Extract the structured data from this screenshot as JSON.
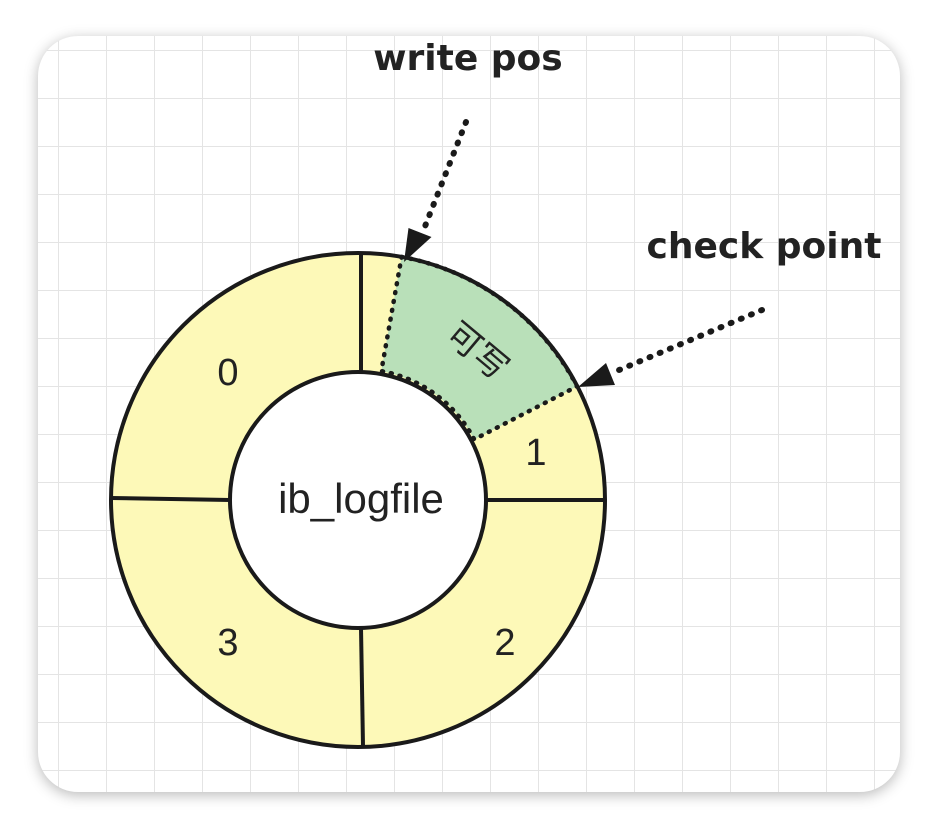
{
  "diagram": {
    "center_label": "ib_logfile",
    "segments": [
      {
        "id": "0",
        "label": "0"
      },
      {
        "id": "1",
        "label": "1"
      },
      {
        "id": "2",
        "label": "2"
      },
      {
        "id": "3",
        "label": "3"
      }
    ],
    "writable_region_label": "可写",
    "pointers": {
      "write_pos": "write pos",
      "check_point": "check point"
    },
    "colors": {
      "segment_fill": "#fdf9b8",
      "writable_fill": "#b9e0b9",
      "stroke": "#1a1a1a",
      "center_fill": "#ffffff"
    }
  }
}
